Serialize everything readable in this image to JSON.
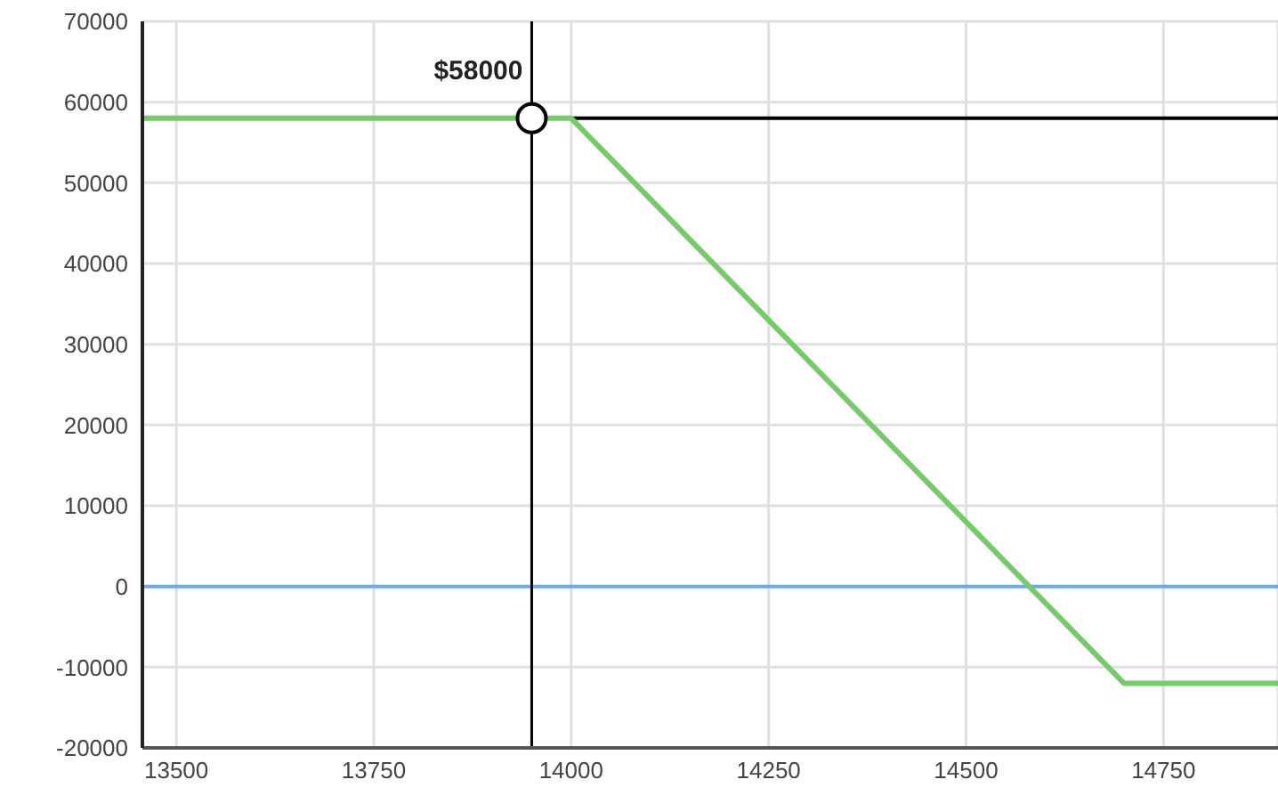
{
  "chart_data": {
    "type": "line",
    "x": [
      13457,
      14000,
      14700,
      14895
    ],
    "series": [
      {
        "color": "#77c96b",
        "values": [
          58000,
          58000,
          -12000,
          -12000
        ]
      }
    ],
    "xlim": [
      13457,
      14895
    ],
    "xticks": [
      13500,
      13750,
      14000,
      14250,
      14500,
      14750
    ],
    "ylim": [
      -20000,
      70000
    ],
    "yticks": [
      -20000,
      -10000,
      0,
      10000,
      20000,
      30000,
      40000,
      50000,
      60000,
      70000
    ],
    "grid": true,
    "ref_lines": [
      {
        "axis": "y",
        "value": 0,
        "color": "#6fa8f0"
      },
      {
        "axis": "x",
        "value": 13950,
        "color": "#000000"
      },
      {
        "axis": "y",
        "value": 58000,
        "color": "#000000"
      }
    ],
    "annotations": [
      {
        "text": "$58000",
        "x": 13950,
        "y": 58000
      }
    ]
  }
}
